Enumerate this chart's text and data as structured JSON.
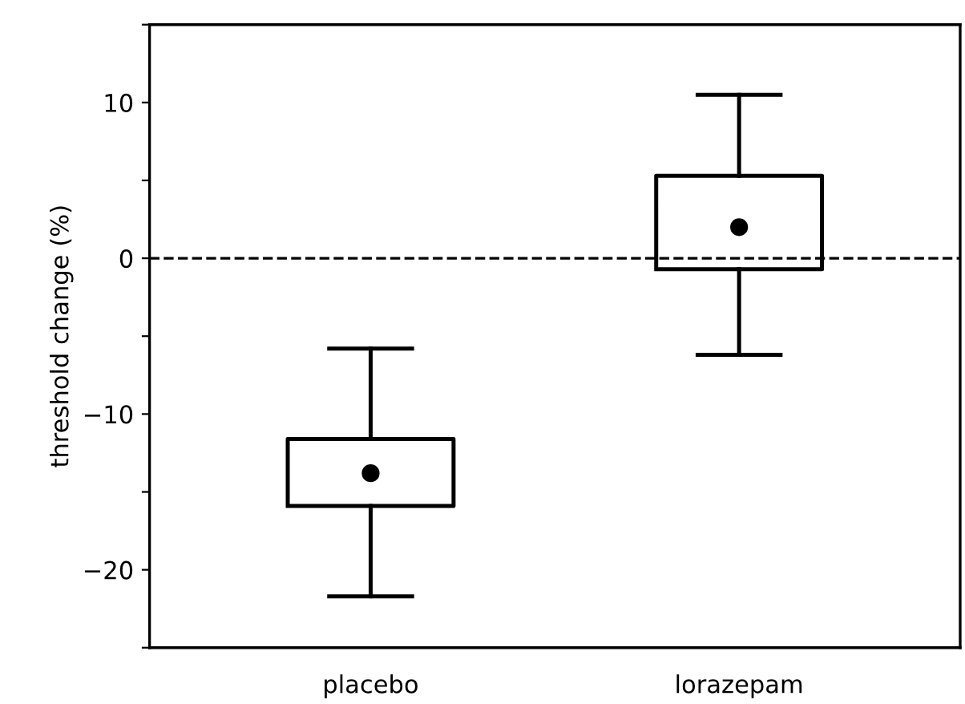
{
  "chart_data": {
    "type": "box",
    "ylabel": "threshold change (%)",
    "categories": [
      "placebo",
      "lorazepam"
    ],
    "boxes": [
      {
        "low": -21.7,
        "q1": -15.9,
        "q3": -11.6,
        "high": -5.8,
        "mean": -13.8
      },
      {
        "low": -6.2,
        "q1": -0.7,
        "q3": 5.3,
        "high": 10.5,
        "mean": 2.0
      }
    ],
    "ylim": [
      -25,
      15
    ],
    "yticks": [
      {
        "value": -25,
        "label": null
      },
      {
        "value": -20,
        "label": "−20"
      },
      {
        "value": -15,
        "label": null
      },
      {
        "value": -10,
        "label": "−10"
      },
      {
        "value": -5,
        "label": null
      },
      0,
      {
        "value": 5,
        "label": null
      },
      10,
      {
        "value": 15,
        "label": null
      }
    ],
    "ref_lines": [
      {
        "axis": "y",
        "value": 0,
        "line_style": "dashed",
        "color": "#000000"
      }
    ],
    "grid": false,
    "legend": false
  }
}
